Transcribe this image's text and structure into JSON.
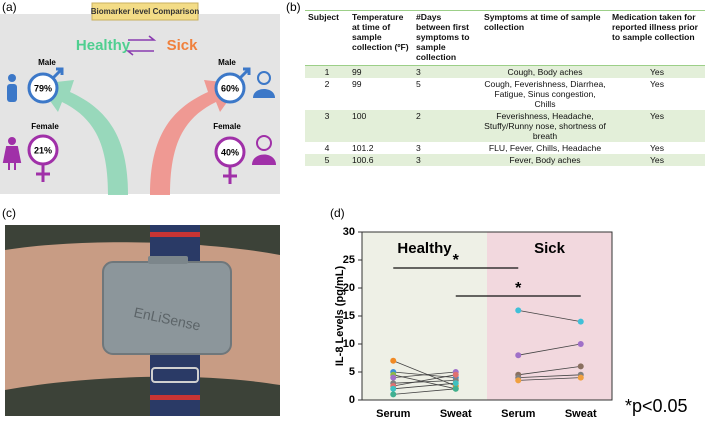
{
  "panel_a": {
    "label": "(a)",
    "title": "Biomarker level Comparison",
    "healthy": "Healthy",
    "sick": "Sick",
    "healthy_male": {
      "label": "Male",
      "percent": "79%"
    },
    "healthy_female": {
      "label": "Female",
      "percent": "21%"
    },
    "sick_male": {
      "label": "Male",
      "percent": "60%"
    },
    "sick_female": {
      "label": "Female",
      "percent": "40%"
    }
  },
  "panel_b": {
    "label": "(b)",
    "table": {
      "header": [
        "Subject",
        "Temperature at time of sample collection (ºF)",
        "#Days between first symptoms to sample collection",
        "Symptoms at time of sample collection",
        "Medication taken for reported illness prior to sample collection"
      ],
      "rows": [
        [
          "1",
          "99",
          "3",
          "Cough, Body aches",
          "Yes"
        ],
        [
          "2",
          "99",
          "5",
          "Cough, Feverishness, Diarrhea, Fatigue, Sinus congestion, Chills",
          "Yes"
        ],
        [
          "3",
          "100",
          "2",
          "Feverishness, Headache, Stuffy/Runny nose, shortness of breath",
          "Yes"
        ],
        [
          "4",
          "101.2",
          "3",
          "FLU, Fever, Chills, Headache",
          "Yes"
        ],
        [
          "5",
          "100.6",
          "3",
          "Fever, Body aches",
          "Yes"
        ]
      ]
    }
  },
  "panel_c": {
    "label": "(c)",
    "device_text": "EnLiSense"
  },
  "chart_data": {
    "type": "line",
    "panel_label": "(d)",
    "y_label": "IL-8 Levels (pg/mL)",
    "categories": [
      "Serum",
      "Sweat",
      "Serum",
      "Sweat"
    ],
    "groups": [
      "Healthy",
      "Sick"
    ],
    "group_colors": [
      "#eef0e6",
      "#f2d8de"
    ],
    "ylim": [
      0,
      30
    ],
    "yticks": [
      0,
      5,
      10,
      15,
      20,
      25,
      30
    ],
    "series": [
      {
        "color": "#f08a24",
        "values": [
          7,
          2.5,
          null,
          null
        ]
      },
      {
        "color": "#3c8fd6",
        "values": [
          5,
          4,
          null,
          null
        ]
      },
      {
        "color": "#8ab84a",
        "values": [
          4.5,
          2,
          null,
          null
        ]
      },
      {
        "color": "#a070c8",
        "values": [
          4,
          5,
          null,
          null
        ]
      },
      {
        "color": "#808080",
        "values": [
          3,
          3.5,
          null,
          null
        ]
      },
      {
        "color": "#e07070",
        "values": [
          2.5,
          4.5,
          null,
          null
        ]
      },
      {
        "color": "#40c0c0",
        "values": [
          2,
          3,
          null,
          null
        ]
      },
      {
        "color": "#40b090",
        "values": [
          1,
          2,
          null,
          null
        ]
      },
      {
        "color": "#40c0d8",
        "values": [
          null,
          null,
          16,
          14
        ]
      },
      {
        "color": "#a070c8",
        "values": [
          null,
          null,
          8,
          10
        ]
      },
      {
        "color": "#8a7060",
        "values": [
          null,
          null,
          4.5,
          6
        ]
      },
      {
        "color": "#808080",
        "values": [
          null,
          null,
          4,
          4.5
        ]
      },
      {
        "color": "#f0a040",
        "values": [
          null,
          null,
          3.5,
          4
        ]
      }
    ],
    "annotations": [
      "*",
      "*"
    ],
    "note": "*p<0.05"
  }
}
